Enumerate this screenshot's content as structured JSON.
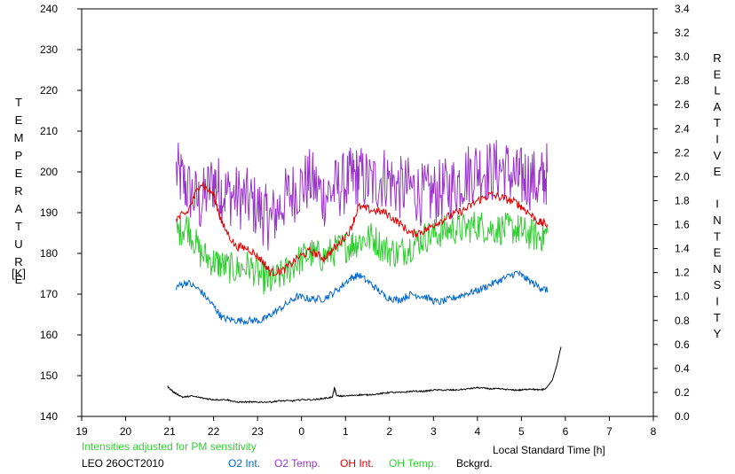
{
  "chart_data": {
    "type": "line",
    "left_axis_label": "TEMPERATURE",
    "left_axis_unit": "[K]",
    "right_axis_label": "RELATIVE INTENSITY",
    "xlabel": "Local Standard Time [h]",
    "x_ticks": [
      "19",
      "20",
      "21",
      "22",
      "23",
      "0",
      "1",
      "2",
      "3",
      "4",
      "5",
      "6",
      "7",
      "8"
    ],
    "x_range": [
      19,
      32
    ],
    "y_left_range": [
      140,
      240
    ],
    "y_left_ticks": [
      140,
      150,
      160,
      170,
      180,
      190,
      200,
      210,
      220,
      230,
      240
    ],
    "y_right_range": [
      0.0,
      3.4
    ],
    "y_right_ticks": [
      "0.0",
      "0.2",
      "0.4",
      "0.6",
      "0.8",
      "1.0",
      "1.2",
      "1.4",
      "1.6",
      "1.8",
      "2.0",
      "2.2",
      "2.4",
      "2.6",
      "2.8",
      "3.0",
      "3.2",
      "3.4"
    ],
    "note": "Intensities adjusted for PM sensitivity",
    "station": "LEO 26OCT2010",
    "grid": false,
    "series": [
      {
        "name": "O2 Int.",
        "axis": "right",
        "color": "#0066cc",
        "x": [
          21.15,
          21.4,
          21.7,
          22.0,
          22.2,
          22.5,
          22.8,
          23.1,
          23.3,
          23.6,
          23.9,
          24.2,
          24.5,
          24.8,
          25.1,
          25.3,
          25.6,
          25.9,
          26.2,
          26.5,
          26.8,
          27.1,
          27.4,
          27.7,
          28.0,
          28.3,
          28.6,
          28.9,
          29.1,
          29.4,
          29.6
        ],
        "y": [
          1.08,
          1.12,
          1.05,
          0.92,
          0.82,
          0.8,
          0.8,
          0.8,
          0.85,
          0.92,
          1.0,
          0.98,
          0.98,
          1.05,
          1.15,
          1.18,
          1.1,
          1.0,
          0.97,
          1.02,
          1.0,
          0.95,
          0.98,
          1.02,
          1.05,
          1.1,
          1.15,
          1.2,
          1.15,
          1.08,
          1.05
        ]
      },
      {
        "name": "O2 Temp.",
        "axis": "left",
        "color": "#9933cc",
        "x": [
          21.15,
          21.4,
          21.7,
          22.0,
          22.2,
          22.5,
          22.8,
          23.1,
          23.3,
          23.6,
          23.9,
          24.2,
          24.5,
          24.8,
          25.1,
          25.3,
          25.6,
          25.9,
          26.2,
          26.5,
          26.8,
          27.1,
          27.4,
          27.7,
          28.0,
          28.3,
          28.6,
          28.9,
          29.1,
          29.4,
          29.6
        ],
        "y": [
          200,
          196,
          192,
          198,
          195,
          194,
          193,
          190,
          188,
          193,
          196,
          198,
          194,
          196,
          198,
          199,
          197,
          199,
          196,
          196,
          194,
          195,
          196,
          199,
          201,
          200,
          201,
          198,
          199,
          197,
          200
        ]
      },
      {
        "name": "OH Int.",
        "axis": "right",
        "color": "#dd0000",
        "x": [
          21.15,
          21.4,
          21.7,
          22.0,
          22.2,
          22.5,
          22.8,
          23.1,
          23.3,
          23.6,
          23.9,
          24.2,
          24.5,
          24.8,
          25.1,
          25.3,
          25.6,
          25.9,
          26.2,
          26.5,
          26.8,
          27.1,
          27.4,
          27.7,
          28.0,
          28.3,
          28.6,
          28.9,
          29.1,
          29.4,
          29.6
        ],
        "y": [
          1.65,
          1.7,
          1.95,
          1.85,
          1.6,
          1.42,
          1.4,
          1.3,
          1.2,
          1.22,
          1.32,
          1.38,
          1.32,
          1.42,
          1.55,
          1.75,
          1.72,
          1.7,
          1.62,
          1.52,
          1.55,
          1.62,
          1.68,
          1.72,
          1.8,
          1.85,
          1.82,
          1.78,
          1.72,
          1.62,
          1.6
        ]
      },
      {
        "name": "OH Temp.",
        "axis": "left",
        "color": "#33cc33",
        "x": [
          21.15,
          21.4,
          21.7,
          22.0,
          22.2,
          22.5,
          22.8,
          23.1,
          23.3,
          23.6,
          23.9,
          24.2,
          24.5,
          24.8,
          25.1,
          25.3,
          25.6,
          25.9,
          26.2,
          26.5,
          26.8,
          27.1,
          27.4,
          27.7,
          28.0,
          28.3,
          28.6,
          28.9,
          29.1,
          29.4,
          29.6
        ],
        "y": [
          185,
          187,
          180,
          178,
          177,
          176,
          177,
          174,
          173,
          175,
          178,
          180,
          179,
          181,
          182,
          183,
          184,
          181,
          180,
          182,
          184,
          185,
          186,
          186,
          187,
          186,
          186,
          186,
          185,
          184,
          185
        ]
      },
      {
        "name": "Bckgrd.",
        "axis": "right",
        "color": "#000000",
        "x": [
          20.95,
          21.1,
          21.3,
          21.5,
          21.8,
          22.0,
          22.3,
          22.5,
          22.8,
          23.0,
          23.3,
          23.5,
          23.8,
          24.0,
          24.3,
          24.5,
          24.7,
          24.75,
          24.8,
          25.0,
          25.3,
          25.5,
          25.8,
          26.0,
          26.3,
          26.5,
          26.8,
          27.0,
          27.3,
          27.5,
          27.8,
          28.0,
          28.3,
          28.5,
          28.8,
          29.0,
          29.2,
          29.4,
          29.55,
          29.7,
          29.8,
          29.9
        ],
        "y": [
          0.25,
          0.2,
          0.16,
          0.17,
          0.15,
          0.14,
          0.14,
          0.12,
          0.12,
          0.12,
          0.12,
          0.13,
          0.13,
          0.14,
          0.14,
          0.15,
          0.16,
          0.24,
          0.17,
          0.17,
          0.18,
          0.18,
          0.19,
          0.2,
          0.2,
          0.21,
          0.21,
          0.22,
          0.22,
          0.22,
          0.23,
          0.24,
          0.23,
          0.23,
          0.22,
          0.22,
          0.23,
          0.22,
          0.23,
          0.3,
          0.42,
          0.58
        ]
      }
    ]
  }
}
